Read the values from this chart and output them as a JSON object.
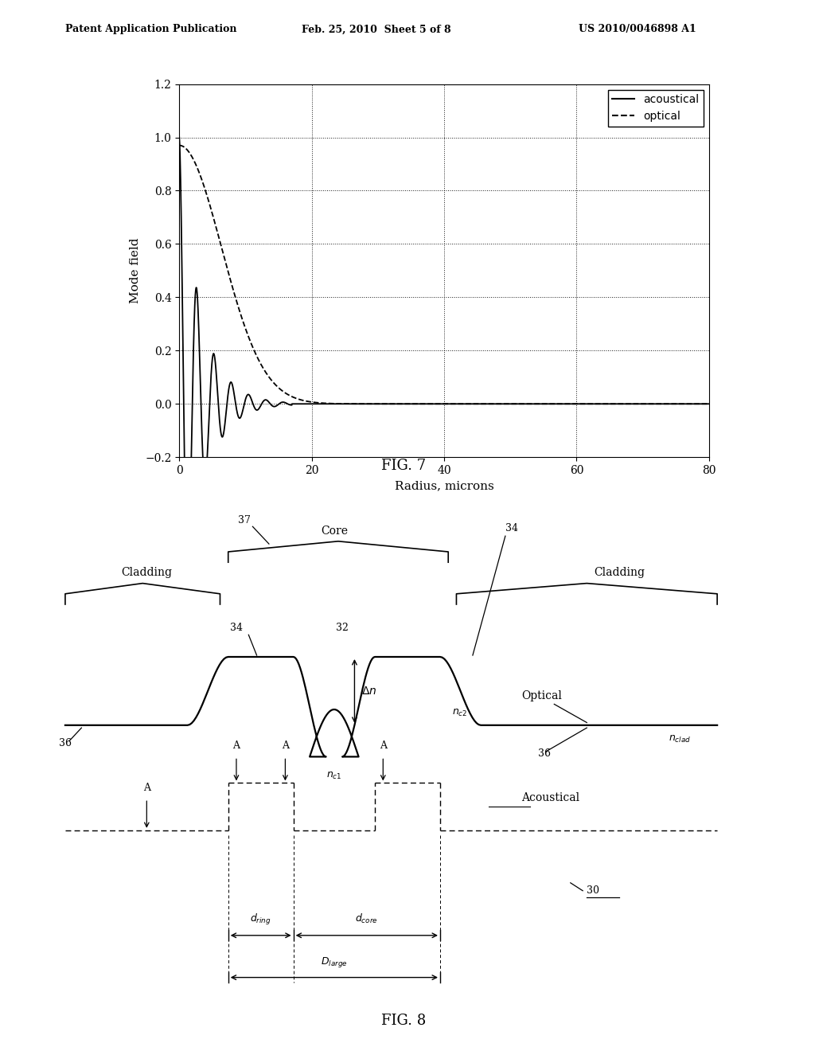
{
  "header_left": "Patent Application Publication",
  "header_mid": "Feb. 25, 2010  Sheet 5 of 8",
  "header_right": "US 2010/0046898 A1",
  "fig7_title": "FIG. 7",
  "fig8_title": "FIG. 8",
  "fig7_xlabel": "Radius, microns",
  "fig7_ylabel": "Mode field",
  "fig7_xlim": [
    0,
    80
  ],
  "fig7_ylim": [
    -0.2,
    1.2
  ],
  "fig7_xticks": [
    0,
    20,
    40,
    60,
    80
  ],
  "fig7_yticks": [
    -0.2,
    0.0,
    0.2,
    0.4,
    0.6,
    0.8,
    1.0,
    1.2
  ],
  "legend_acoustical": "acoustical",
  "legend_optical": "optical",
  "background_color": "#ffffff"
}
